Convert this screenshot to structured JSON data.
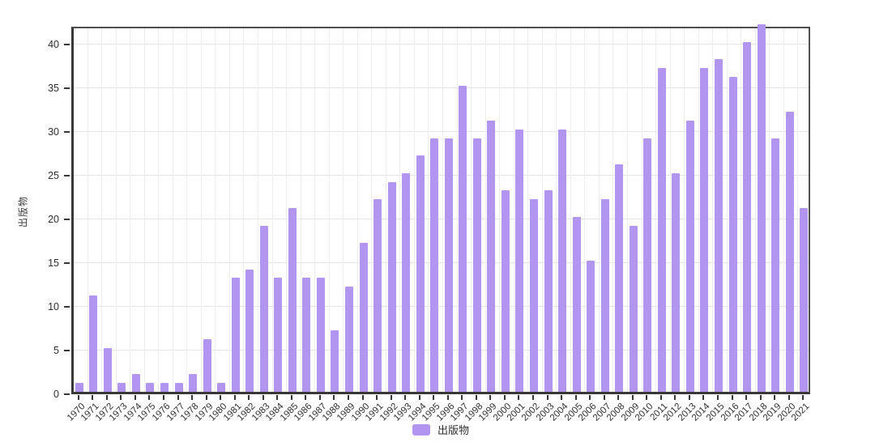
{
  "chart_data": {
    "type": "bar",
    "title": "",
    "xlabel": "",
    "ylabel": "出版物",
    "legend": [
      "出版物"
    ],
    "legend_position": "bottom",
    "grid": true,
    "bar_color": "#b295ef",
    "ylim": [
      0,
      42
    ],
    "yticks": [
      0,
      5,
      10,
      15,
      20,
      25,
      30,
      35,
      40
    ],
    "categories": [
      "1970",
      "1971",
      "1972",
      "1973",
      "1974",
      "1975",
      "1976",
      "1977",
      "1978",
      "1979",
      "1980",
      "1981",
      "1982",
      "1983",
      "1984",
      "1985",
      "1986",
      "1987",
      "1988",
      "1989",
      "1990",
      "1991",
      "1992",
      "1993",
      "1994",
      "1995",
      "1996",
      "1997",
      "1998",
      "1999",
      "2000",
      "2001",
      "2002",
      "2003",
      "2004",
      "2005",
      "2006",
      "2007",
      "2008",
      "2009",
      "2010",
      "2011",
      "2012",
      "2013",
      "2014",
      "2015",
      "2016",
      "2017",
      "2018",
      "2019",
      "2020",
      "2021"
    ],
    "values": [
      1,
      11,
      5,
      1,
      2,
      1,
      1,
      1,
      2,
      6,
      1,
      13,
      14,
      19,
      13,
      21,
      13,
      13,
      7,
      12,
      17,
      22,
      24,
      25,
      27,
      29,
      29,
      35,
      29,
      31,
      23,
      30,
      22,
      23,
      30,
      20,
      15,
      22,
      26,
      19,
      29,
      37,
      25,
      31,
      37,
      38,
      36,
      40,
      42,
      29,
      32,
      21
    ]
  }
}
